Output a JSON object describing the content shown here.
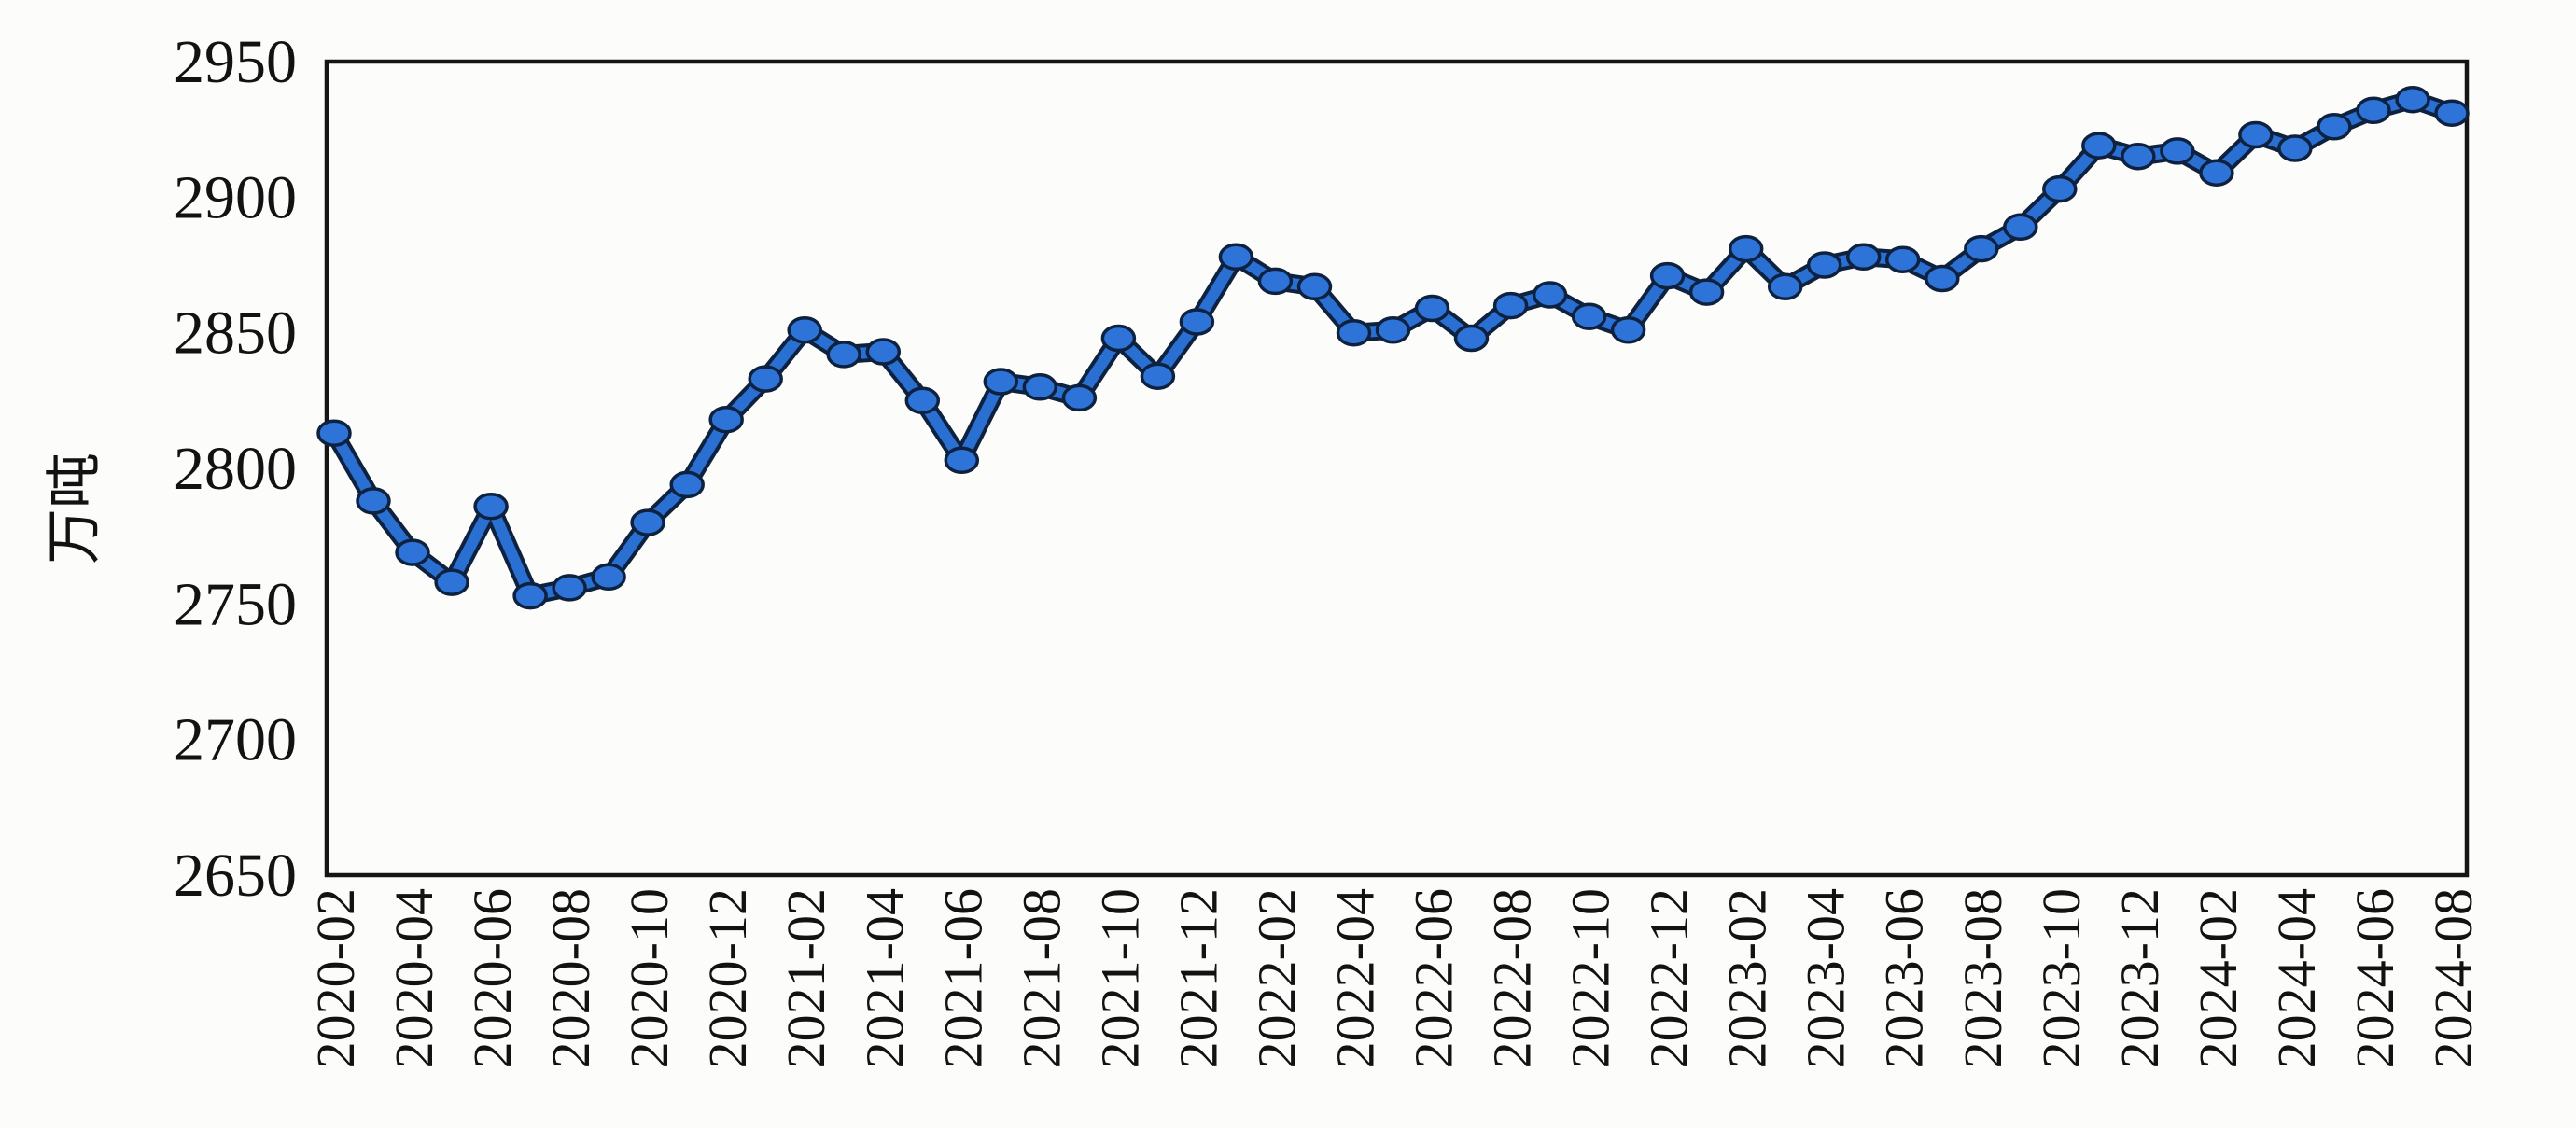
{
  "page": {
    "title": "",
    "background_color": "#fcfcfb"
  },
  "chart_data": {
    "type": "line",
    "title": "",
    "xlabel": "",
    "ylabel": "万吨",
    "legend": "none",
    "grid": false,
    "ylim": [
      2650,
      2950
    ],
    "y_ticks": [
      2650,
      2700,
      2750,
      2800,
      2850,
      2900,
      2950
    ],
    "x": [
      "2020-02",
      "2020-03",
      "2020-04",
      "2020-05",
      "2020-06",
      "2020-07",
      "2020-08",
      "2020-09",
      "2020-10",
      "2020-11",
      "2020-12",
      "2021-01",
      "2021-02",
      "2021-03",
      "2021-04",
      "2021-05",
      "2021-06",
      "2021-07",
      "2021-08",
      "2021-09",
      "2021-10",
      "2021-11",
      "2021-12",
      "2022-01",
      "2022-02",
      "2022-03",
      "2022-04",
      "2022-05",
      "2022-06",
      "2022-07",
      "2022-08",
      "2022-09",
      "2022-10",
      "2022-11",
      "2022-12",
      "2023-01",
      "2023-02",
      "2023-03",
      "2023-04",
      "2023-05",
      "2023-06",
      "2023-07",
      "2023-08",
      "2023-09",
      "2023-10",
      "2023-11",
      "2023-12",
      "2024-01",
      "2024-02",
      "2024-03",
      "2024-04",
      "2024-05",
      "2024-06",
      "2024-07",
      "2024-08"
    ],
    "values": [
      2813,
      2788,
      2769,
      2758,
      2786,
      2753,
      2756,
      2760,
      2780,
      2794,
      2818,
      2833,
      2851,
      2842,
      2843,
      2825,
      2803,
      2832,
      2830,
      2826,
      2848,
      2834,
      2854,
      2878,
      2869,
      2867,
      2850,
      2851,
      2859,
      2848,
      2860,
      2864,
      2856,
      2851,
      2871,
      2865,
      2881,
      2867,
      2875,
      2878,
      2877,
      2870,
      2881,
      2889,
      2903,
      2919,
      2915,
      2917,
      2909,
      2923,
      2918,
      2926,
      2932,
      2936,
      2931
    ],
    "x_tick_labels": [
      "2020-02",
      "2020-04",
      "2020-06",
      "2020-08",
      "2020-10",
      "2020-12",
      "2021-02",
      "2021-04",
      "2021-06",
      "2021-08",
      "2021-10",
      "2021-12",
      "2022-02",
      "2022-04",
      "2022-06",
      "2022-08",
      "2022-10",
      "2022-12",
      "2023-02",
      "2023-04",
      "2023-06",
      "2023-08",
      "2023-10",
      "2023-12",
      "2024-02",
      "2024-04",
      "2024-06",
      "2024-08"
    ],
    "x_tick_every": 2,
    "line_color": "#2a6fd2",
    "line_edge_color": "#0e2240",
    "marker_fill": "#2e74d8",
    "marker_shape": "ellipse"
  }
}
